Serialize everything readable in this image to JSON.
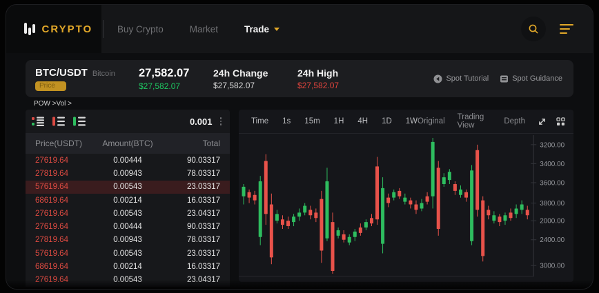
{
  "navbar": {
    "brand": "CRYPTO",
    "links": [
      {
        "label": "Buy Crypto",
        "active": false,
        "has_dropdown": false
      },
      {
        "label": "Market",
        "active": false,
        "has_dropdown": false
      },
      {
        "label": "Trade",
        "active": true,
        "has_dropdown": true
      }
    ]
  },
  "ticker": {
    "pair": "BTC/USDT",
    "pair_name": "Bitcoin",
    "badge": "Price",
    "last_price": "27,582.07",
    "last_price_usd": "$27,582.07",
    "change_label": "24h Change",
    "change_value": "$27,582.07",
    "high_label": "24h High",
    "high_value": "$27,582.07",
    "links": [
      {
        "label": "Spot Tutorial",
        "icon": "play-circle-icon"
      },
      {
        "label": "Spot Guidance",
        "icon": "guide-book-icon"
      }
    ]
  },
  "breadcrumb": "POW >Vol >",
  "orderbook": {
    "precision": "0.001",
    "columns": [
      "Price(USDT)",
      "Amount(BTC)",
      "Total"
    ],
    "rows": [
      {
        "price": "27619.64",
        "amount": "0.00444",
        "total": "90.03317",
        "highlighted": false
      },
      {
        "price": "27819.64",
        "amount": "0.00943",
        "total": "78.03317",
        "highlighted": false
      },
      {
        "price": "57619.64",
        "amount": "0.00543",
        "total": "23.03317",
        "highlighted": true
      },
      {
        "price": "68619.64",
        "amount": "0.00214",
        "total": "16.03317",
        "highlighted": false
      },
      {
        "price": "27619.64",
        "amount": "0.00543",
        "total": "23.04317",
        "highlighted": false
      },
      {
        "price": "27619.64",
        "amount": "0.00444",
        "total": "90.03317",
        "highlighted": false
      },
      {
        "price": "27819.64",
        "amount": "0.00943",
        "total": "78.03317",
        "highlighted": false
      },
      {
        "price": "57619.64",
        "amount": "0.00543",
        "total": "23.03317",
        "highlighted": false
      },
      {
        "price": "68619.64",
        "amount": "0.00214",
        "total": "16.03317",
        "highlighted": false
      },
      {
        "price": "27619.64",
        "amount": "0.00543",
        "total": "23.04317",
        "highlighted": false
      }
    ]
  },
  "chart_toolbar": {
    "intervals": [
      "Time",
      "1s",
      "15m",
      "1H",
      "4H",
      "1D",
      "1W"
    ],
    "views": [
      "Original",
      "Trading View",
      "Depth"
    ]
  },
  "chart_data": {
    "type": "candlestick",
    "title": "BTC/USDT price chart",
    "legend": "none",
    "grid": "right axis ticks only, bottom baseline",
    "y_axis_labels": [
      {
        "label": "3200.00",
        "pos": 95
      },
      {
        "label": "3400.00",
        "pos": 81
      },
      {
        "label": "3600.00",
        "pos": 67
      },
      {
        "label": "3800.00",
        "pos": 52
      },
      {
        "label": "2000.00",
        "pos": 39
      },
      {
        "label": "2400.00",
        "pos": 25
      },
      {
        "label": "3000.00",
        "pos": 6
      }
    ],
    "value_scale": "percent_of_plot_height_from_bottom",
    "candles_format": [
      "open",
      "high",
      "low",
      "close"
    ],
    "candles": [
      [
        57,
        66,
        51,
        64
      ],
      [
        60,
        62,
        52,
        56
      ],
      [
        58,
        61,
        51,
        54
      ],
      [
        27,
        72,
        21,
        68
      ],
      [
        83,
        88,
        36,
        44
      ],
      [
        51,
        59,
        7,
        12
      ],
      [
        39,
        47,
        37,
        44
      ],
      [
        40,
        43,
        33,
        36
      ],
      [
        39,
        42,
        33,
        35
      ],
      [
        38,
        44,
        35,
        42
      ],
      [
        42,
        48,
        39,
        45
      ],
      [
        45,
        52,
        43,
        50
      ],
      [
        47,
        50,
        40,
        43
      ],
      [
        45,
        48,
        38,
        41
      ],
      [
        55,
        61,
        8,
        17
      ],
      [
        26,
        78,
        24,
        68
      ],
      [
        38,
        45,
        0,
        2
      ],
      [
        28,
        34,
        26,
        32
      ],
      [
        29,
        32,
        23,
        25
      ],
      [
        23,
        29,
        21,
        27
      ],
      [
        27,
        33,
        24,
        31
      ],
      [
        34,
        37,
        28,
        30
      ],
      [
        34,
        40,
        32,
        38
      ],
      [
        41,
        44,
        35,
        37
      ],
      [
        79,
        86,
        36,
        40
      ],
      [
        22,
        71,
        15,
        63
      ],
      [
        56,
        59,
        49,
        52
      ],
      [
        56,
        62,
        54,
        60
      ],
      [
        61,
        63,
        55,
        57
      ],
      [
        53,
        59,
        51,
        56
      ],
      [
        54,
        56,
        48,
        51
      ],
      [
        51,
        54,
        44,
        47
      ],
      [
        48,
        55,
        46,
        52
      ],
      [
        57,
        60,
        51,
        53
      ],
      [
        57,
        100,
        48,
        97
      ],
      [
        78,
        83,
        28,
        33
      ],
      [
        66,
        74,
        64,
        71
      ],
      [
        69,
        77,
        66,
        75
      ],
      [
        66,
        68,
        58,
        61
      ],
      [
        58,
        65,
        56,
        62
      ],
      [
        60,
        62,
        53,
        56
      ],
      [
        24,
        80,
        21,
        76
      ],
      [
        91,
        95,
        42,
        47
      ],
      [
        54,
        57,
        9,
        13
      ],
      [
        47,
        50,
        40,
        43
      ],
      [
        39,
        46,
        37,
        43
      ],
      [
        42,
        44,
        35,
        38
      ],
      [
        39,
        45,
        36,
        43
      ],
      [
        45,
        48,
        39,
        41
      ],
      [
        44,
        51,
        41,
        48
      ],
      [
        47,
        54,
        44,
        51
      ],
      [
        47,
        50,
        40,
        43
      ]
    ],
    "colors": {
      "up": "#2EBD5F",
      "down": "#E8524A",
      "axis_text": "#96989d",
      "axis_line": "#33343a"
    }
  },
  "colors": {
    "accent_gold": "#E2A829",
    "positive_green": "#1EC560",
    "negative_red": "#E0443D",
    "panel_bg": "#17181B"
  }
}
